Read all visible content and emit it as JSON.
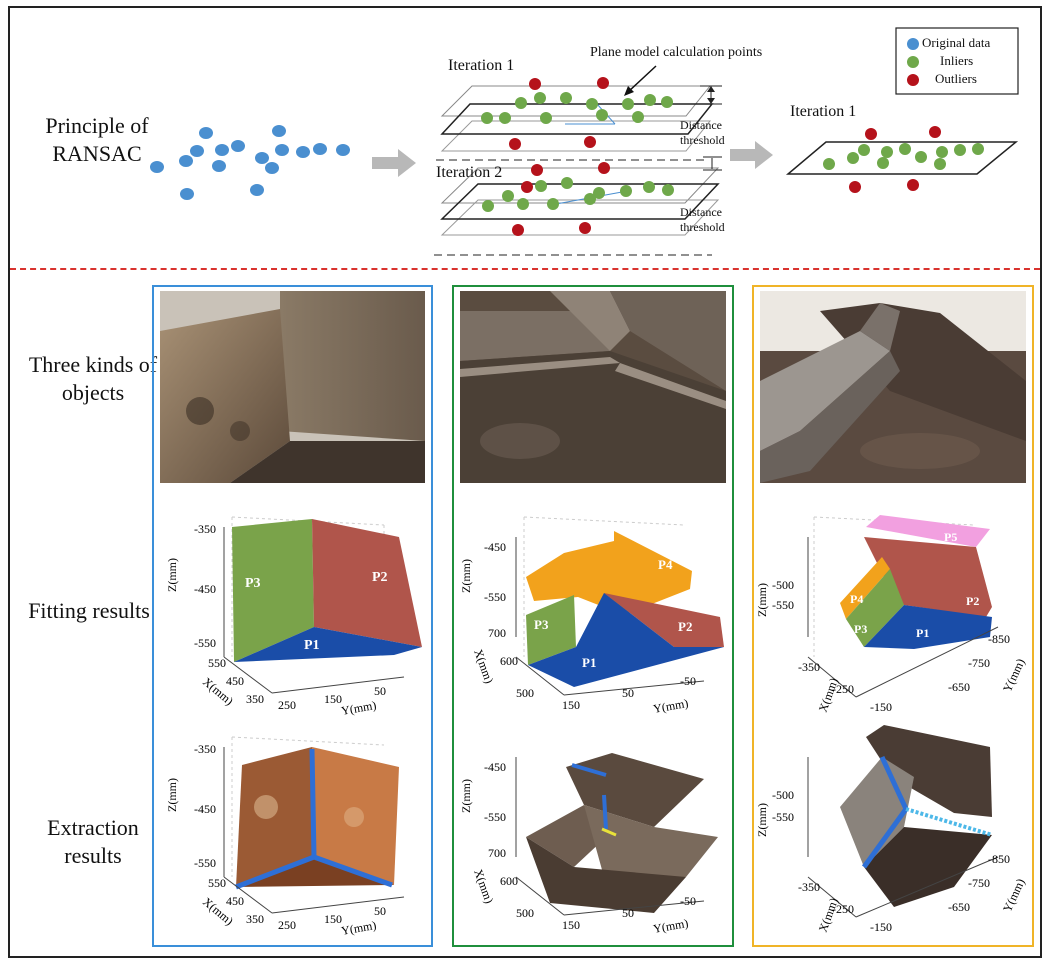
{
  "principle": {
    "title": "Principle of RANSAC",
    "iteration1": "Iteration 1",
    "iteration2": "Iteration 2",
    "iteration_result": "Iteration 1",
    "plane_note": "Plane model calculation points",
    "distance_threshold_1": "Distance threshold",
    "distance_threshold_2": "Distance threshold",
    "legend": {
      "original": "Original data",
      "inliers": "Inliers",
      "outliers": "Outliers"
    },
    "colors": {
      "original": "#4a8fd0",
      "inlier": "#6fa84a",
      "outlier": "#b5121b"
    }
  },
  "row_labels": {
    "objects": "Three kinds of objects",
    "fitting": "Fitting results",
    "extraction": "Extraction results"
  },
  "panel_colors": [
    "#3a8fd9",
    "#1f8f3c",
    "#f0b428"
  ],
  "plots": [
    {
      "z_label": "Z(mm)",
      "x_label": "X(mm)",
      "y_label": "Y(mm)",
      "z_ticks": [
        "-350",
        "-450",
        "-550"
      ],
      "x_ticks": [
        "550",
        "450",
        "350"
      ],
      "y_ticks": [
        "250",
        "150",
        "50"
      ],
      "planes": [
        "P1",
        "P2",
        "P3"
      ]
    },
    {
      "z_label": "Z(mm)",
      "x_label": "X(mm)",
      "y_label": "Y(mm)",
      "z_ticks": [
        "-450",
        "-550"
      ],
      "x_ticks": [
        "700",
        "600",
        "500"
      ],
      "y_ticks": [
        "150",
        "50",
        "-50"
      ],
      "planes": [
        "P1",
        "P2",
        "P3",
        "P4"
      ]
    },
    {
      "z_label": "Z(mm)",
      "x_label": "X(mm)",
      "y_label": "Y(mm)",
      "z_ticks": [
        "-500",
        "-550"
      ],
      "x_ticks": [
        "-350",
        "-250",
        "-150"
      ],
      "y_ticks": [
        "-850",
        "-750",
        "-650"
      ],
      "planes": [
        "P1",
        "P2",
        "P3",
        "P4",
        "P5"
      ]
    }
  ]
}
